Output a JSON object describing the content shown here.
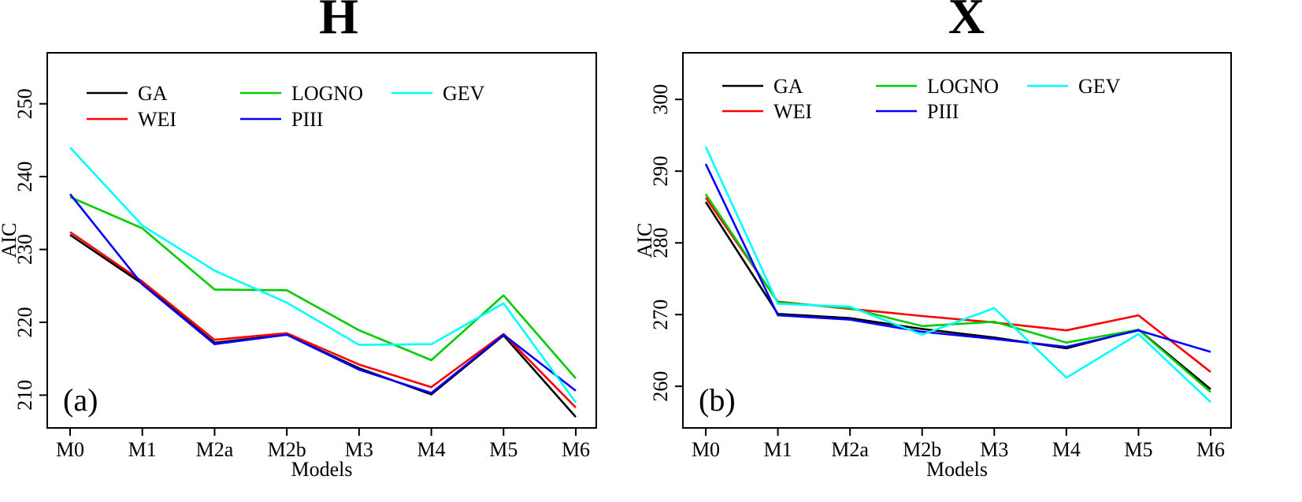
{
  "chart_data": [
    {
      "type": "line",
      "title": "H",
      "panel_label": "(a)",
      "xlabel": "Models",
      "ylabel": "AIC",
      "categories": [
        "M0",
        "M1",
        "M2a",
        "M2b",
        "M3",
        "M4",
        "M5",
        "M6"
      ],
      "ylim": [
        205.5,
        257
      ],
      "yticks": [
        210,
        220,
        230,
        240,
        250
      ],
      "grid": false,
      "legend_position": "top",
      "series": [
        {
          "name": "GA",
          "color": "#000000",
          "values": [
            232.0,
            225.3,
            217.2,
            218.3,
            213.7,
            210.1,
            218.2,
            207.0
          ]
        },
        {
          "name": "WEI",
          "color": "#ff0000",
          "values": [
            232.4,
            225.6,
            217.6,
            218.5,
            214.2,
            211.1,
            218.4,
            208.3
          ]
        },
        {
          "name": "LOGNO",
          "color": "#00cc00",
          "values": [
            237.2,
            232.9,
            224.5,
            224.4,
            218.9,
            214.8,
            223.7,
            212.3
          ]
        },
        {
          "name": "PIII",
          "color": "#0000ff",
          "values": [
            237.6,
            225.2,
            217.0,
            218.3,
            213.5,
            210.3,
            218.3,
            210.6
          ]
        },
        {
          "name": "GEV",
          "color": "#00ffff",
          "values": [
            244.0,
            233.3,
            227.1,
            222.7,
            216.9,
            217.0,
            222.6,
            209.0
          ]
        }
      ]
    },
    {
      "type": "line",
      "title": "X",
      "panel_label": "(b)",
      "xlabel": "Models",
      "ylabel": "AIC",
      "categories": [
        "M0",
        "M1",
        "M2a",
        "M2b",
        "M3",
        "M4",
        "M5",
        "M6"
      ],
      "ylim": [
        254.2,
        306.5
      ],
      "yticks": [
        260,
        270,
        280,
        290,
        300
      ],
      "grid": false,
      "legend_position": "top",
      "series": [
        {
          "name": "GA",
          "color": "#000000",
          "values": [
            285.7,
            270.1,
            269.5,
            268.0,
            266.8,
            265.3,
            267.9,
            259.6
          ]
        },
        {
          "name": "WEI",
          "color": "#ff0000",
          "values": [
            286.3,
            271.8,
            270.8,
            269.8,
            268.9,
            267.8,
            269.9,
            262.0
          ]
        },
        {
          "name": "LOGNO",
          "color": "#00cc00",
          "values": [
            286.8,
            271.7,
            270.9,
            268.4,
            269.0,
            266.1,
            267.9,
            259.2
          ]
        },
        {
          "name": "PIII",
          "color": "#0000ff",
          "values": [
            291.0,
            269.9,
            269.3,
            267.6,
            266.6,
            265.5,
            267.8,
            264.8
          ]
        },
        {
          "name": "GEV",
          "color": "#00ffff",
          "values": [
            293.4,
            271.5,
            271.1,
            267.2,
            270.9,
            261.2,
            267.3,
            257.8
          ]
        }
      ]
    }
  ]
}
